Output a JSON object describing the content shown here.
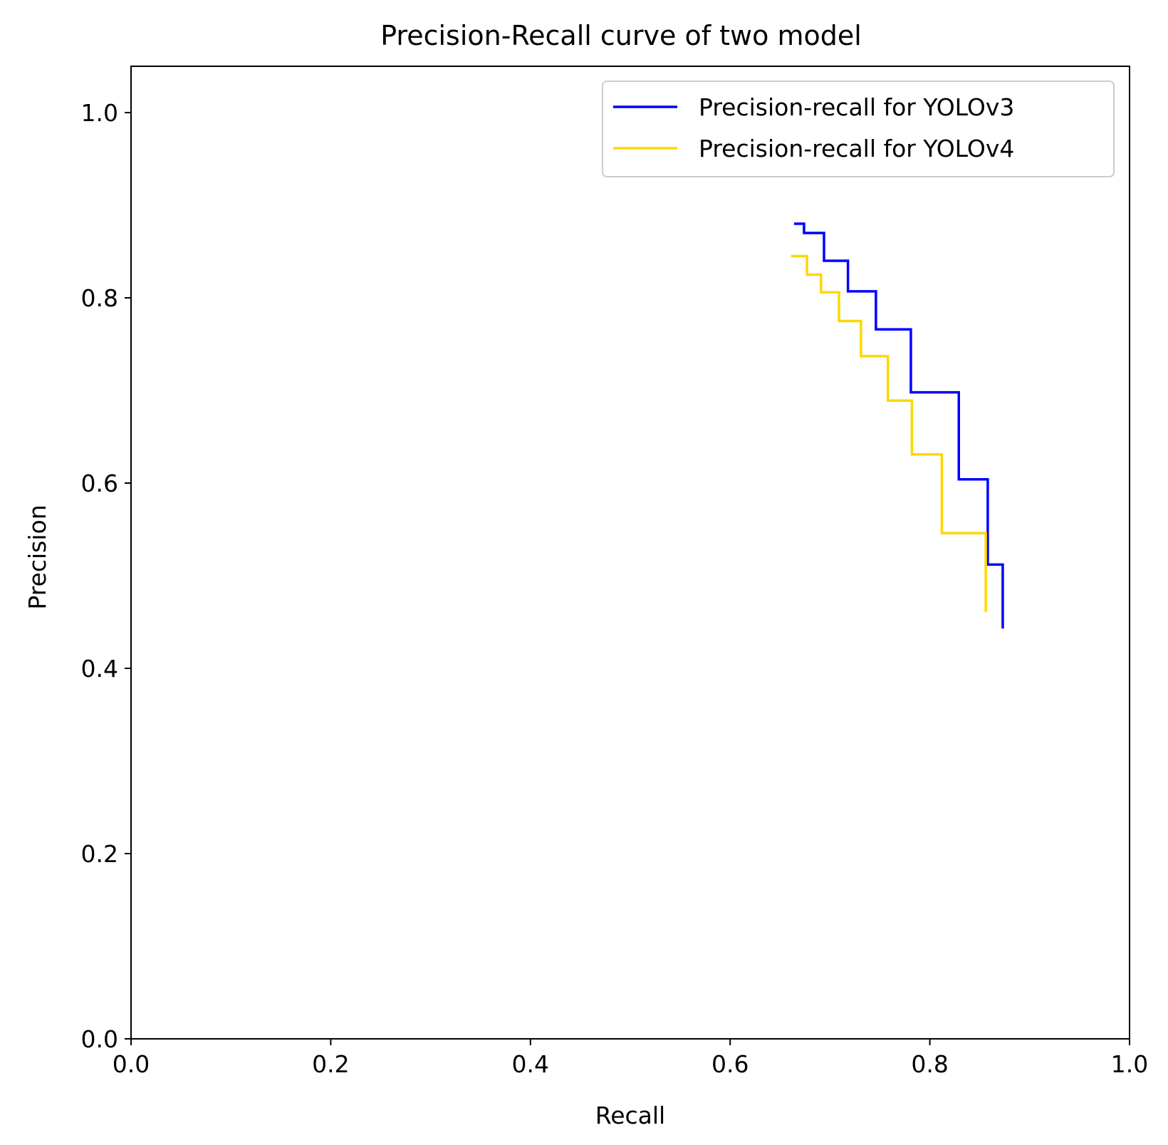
{
  "chart_data": {
    "type": "line",
    "title": "Precision-Recall curve of two model",
    "xlabel": "Recall",
    "ylabel": "Precision",
    "xlim": [
      0.0,
      1.0
    ],
    "ylim": [
      0.0,
      1.05
    ],
    "xticks": [
      {
        "value": 0.0,
        "label": "0.0"
      },
      {
        "value": 0.2,
        "label": "0.2"
      },
      {
        "value": 0.4,
        "label": "0.4"
      },
      {
        "value": 0.6,
        "label": "0.6"
      },
      {
        "value": 0.8,
        "label": "0.8"
      },
      {
        "value": 1.0,
        "label": "1.0"
      }
    ],
    "yticks": [
      {
        "value": 0.0,
        "label": "0.0"
      },
      {
        "value": 0.2,
        "label": "0.2"
      },
      {
        "value": 0.4,
        "label": "0.4"
      },
      {
        "value": 0.6,
        "label": "0.6"
      },
      {
        "value": 0.8,
        "label": "0.8"
      },
      {
        "value": 1.0,
        "label": "1.0"
      }
    ],
    "grid": false,
    "legend": "top-right",
    "series": [
      {
        "name": "Precision-recall for YOLOv3",
        "color": "#0000ff",
        "step": "post",
        "recall": [
          0.664,
          0.674,
          0.694,
          0.718,
          0.746,
          0.781,
          0.829,
          0.858,
          0.873
        ],
        "precision": [
          0.88,
          0.87,
          0.84,
          0.807,
          0.766,
          0.698,
          0.604,
          0.512,
          0.443
        ]
      },
      {
        "name": "Precision-recall for YOLOv4",
        "color": "#ffd700",
        "step": "post",
        "recall": [
          0.661,
          0.677,
          0.691,
          0.709,
          0.731,
          0.758,
          0.782,
          0.812,
          0.856
        ],
        "precision": [
          0.845,
          0.825,
          0.806,
          0.775,
          0.737,
          0.689,
          0.631,
          0.546,
          0.461
        ]
      }
    ]
  }
}
